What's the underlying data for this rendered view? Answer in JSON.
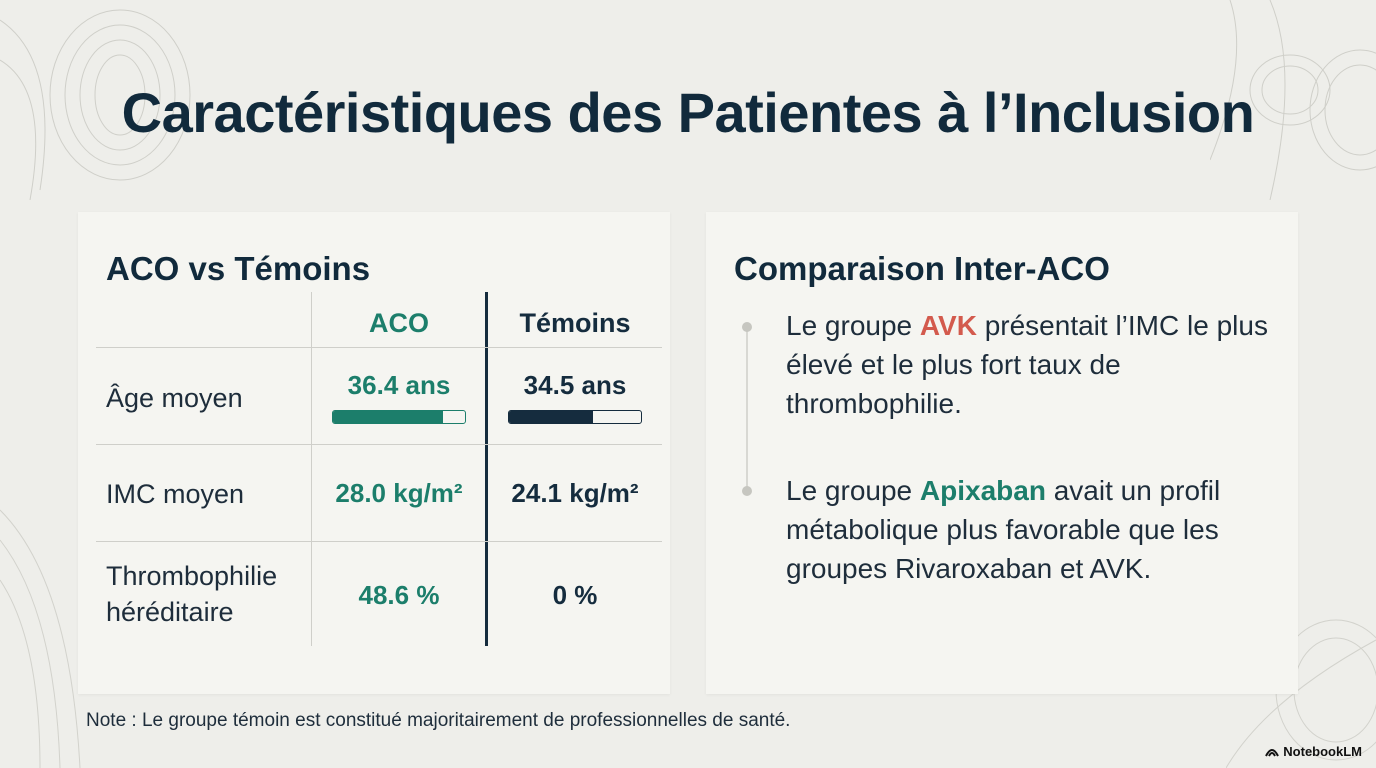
{
  "title": "Caractéristiques des Patientes à l’Inclusion",
  "left_panel": {
    "title": "ACO vs Témoins",
    "columns": {
      "aco": "ACO",
      "temoins": "Témoins"
    },
    "rows": [
      {
        "label": "Âge moyen",
        "aco": "36.4 ans",
        "temoins": "34.5 ans",
        "aco_bar_fraction": 0.83,
        "temoins_bar_fraction": 0.64
      },
      {
        "label": "IMC moyen",
        "aco": "28.0 kg/m²",
        "temoins": "24.1 kg/m²"
      },
      {
        "label": "Thrombophilie héréditaire",
        "aco": "48.6 %",
        "temoins": "0 %"
      }
    ]
  },
  "right_panel": {
    "title": "Comparaison Inter-ACO",
    "points": [
      {
        "before": "Le groupe ",
        "highlight": "AVK",
        "after": " présentait l’IMC le plus élevé et le plus fort taux de thrombophilie."
      },
      {
        "before": "Le groupe ",
        "highlight": "Apixaban",
        "after": " avait un profil métabolique plus favorable que les groupes Rivaroxaban et AVK."
      }
    ]
  },
  "note": "Note : Le groupe témoin est constitué majoritairement de professionnelles de santé.",
  "brand": "NotebookLM",
  "colors": {
    "aco": "#1c7e6b",
    "temoins": "#152c3e",
    "avk": "#d35a4d"
  }
}
